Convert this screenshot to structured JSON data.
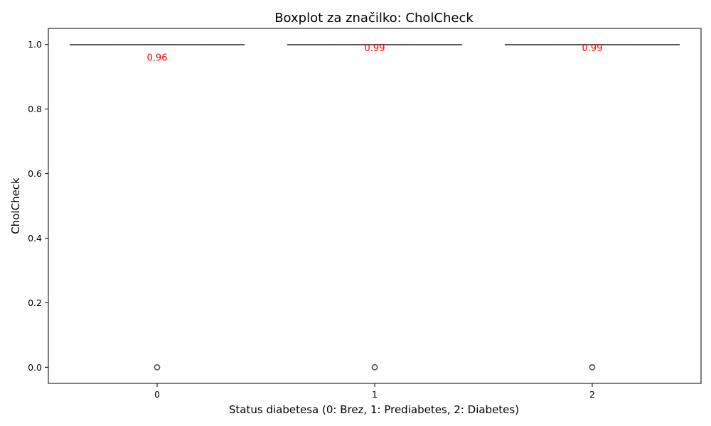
{
  "chart_data": {
    "type": "box",
    "title": "Boxplot za značilko: CholCheck",
    "xlabel": "Status diabetesa (0: Brez, 1: Prediabetes, 2: Diabetes)",
    "ylabel": "CholCheck",
    "categories": [
      "0",
      "1",
      "2"
    ],
    "yticks": [
      "0.0",
      "0.2",
      "0.4",
      "0.6",
      "0.8",
      "1.0"
    ],
    "ylim": [
      -0.05,
      1.05
    ],
    "grid": false,
    "boxes": [
      {
        "category": "0",
        "min": 1.0,
        "q1": 1.0,
        "median": 1.0,
        "q3": 1.0,
        "max": 1.0,
        "outliers": [
          0.0
        ],
        "mean": 0.96,
        "mean_label": "0.96"
      },
      {
        "category": "1",
        "min": 1.0,
        "q1": 1.0,
        "median": 1.0,
        "q3": 1.0,
        "max": 1.0,
        "outliers": [
          0.0
        ],
        "mean": 0.99,
        "mean_label": "0.99"
      },
      {
        "category": "2",
        "min": 1.0,
        "q1": 1.0,
        "median": 1.0,
        "q3": 1.0,
        "max": 1.0,
        "outliers": [
          0.0
        ],
        "mean": 0.99,
        "mean_label": "0.99"
      }
    ],
    "colors": {
      "box_line": "#555555",
      "mean_label": "#ff0000",
      "axis": "#000000"
    }
  }
}
